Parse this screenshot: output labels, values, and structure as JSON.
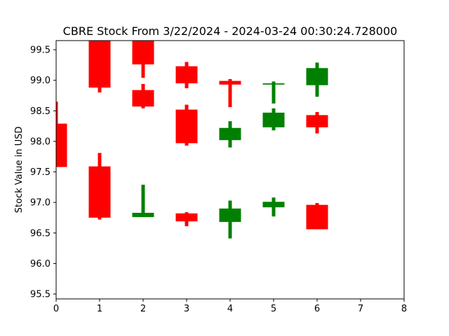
{
  "chart_data": {
    "type": "candlestick",
    "title": "CBRE Stock From 3/22/2024 - 2024-03-24 00:30:24.728000",
    "xlabel": "",
    "ylabel": "Stock Value in USD",
    "xlim": [
      0,
      8
    ],
    "ylim": [
      95.42,
      99.65
    ],
    "x_ticks": [
      0,
      1,
      2,
      3,
      4,
      5,
      6,
      7,
      8
    ],
    "y_ticks": [
      95.5,
      96.0,
      96.5,
      97.0,
      97.5,
      98.0,
      98.5,
      99.0,
      99.5
    ],
    "y_tick_labels": [
      "95.5",
      "96.0",
      "96.5",
      "97.0",
      "97.5",
      "98.0",
      "98.5",
      "99.0",
      "99.5"
    ],
    "grid": false,
    "colors": {
      "up": "#008000",
      "down": "#ff0000"
    },
    "candles": [
      {
        "x": 0,
        "open": 98.29,
        "close": 97.58,
        "high": 98.65,
        "low": 97.58
      },
      {
        "x": 1,
        "open": 99.65,
        "close": 98.88,
        "high": 99.65,
        "low": 98.8
      },
      {
        "x": 1,
        "open": 97.59,
        "close": 96.75,
        "high": 97.81,
        "low": 96.72
      },
      {
        "x": 2,
        "open": 99.65,
        "close": 99.26,
        "high": 99.65,
        "low": 99.04
      },
      {
        "x": 2,
        "open": 98.84,
        "close": 98.57,
        "high": 98.94,
        "low": 98.54
      },
      {
        "x": 2,
        "open": 96.76,
        "close": 96.83,
        "high": 97.29,
        "low": 96.76
      },
      {
        "x": 3,
        "open": 99.23,
        "close": 98.95,
        "high": 99.3,
        "low": 98.87
      },
      {
        "x": 3,
        "open": 98.52,
        "close": 97.97,
        "high": 98.6,
        "low": 97.93
      },
      {
        "x": 3,
        "open": 96.82,
        "close": 96.69,
        "high": 96.84,
        "low": 96.61
      },
      {
        "x": 4,
        "open": 98.99,
        "close": 98.93,
        "high": 99.02,
        "low": 98.56
      },
      {
        "x": 4,
        "open": 98.02,
        "close": 98.22,
        "high": 98.33,
        "low": 97.9
      },
      {
        "x": 4,
        "open": 96.68,
        "close": 96.9,
        "high": 97.03,
        "low": 96.41
      },
      {
        "x": 5,
        "open": 98.93,
        "close": 98.95,
        "high": 98.98,
        "low": 98.62
      },
      {
        "x": 5,
        "open": 98.23,
        "close": 98.47,
        "high": 98.54,
        "low": 98.18
      },
      {
        "x": 5,
        "open": 96.92,
        "close": 97.01,
        "high": 97.08,
        "low": 96.77
      },
      {
        "x": 6,
        "open": 98.92,
        "close": 99.2,
        "high": 99.29,
        "low": 98.73
      },
      {
        "x": 6,
        "open": 98.43,
        "close": 98.23,
        "high": 98.48,
        "low": 98.13
      },
      {
        "x": 6,
        "open": 96.96,
        "close": 96.56,
        "high": 96.99,
        "low": 96.56
      }
    ]
  }
}
